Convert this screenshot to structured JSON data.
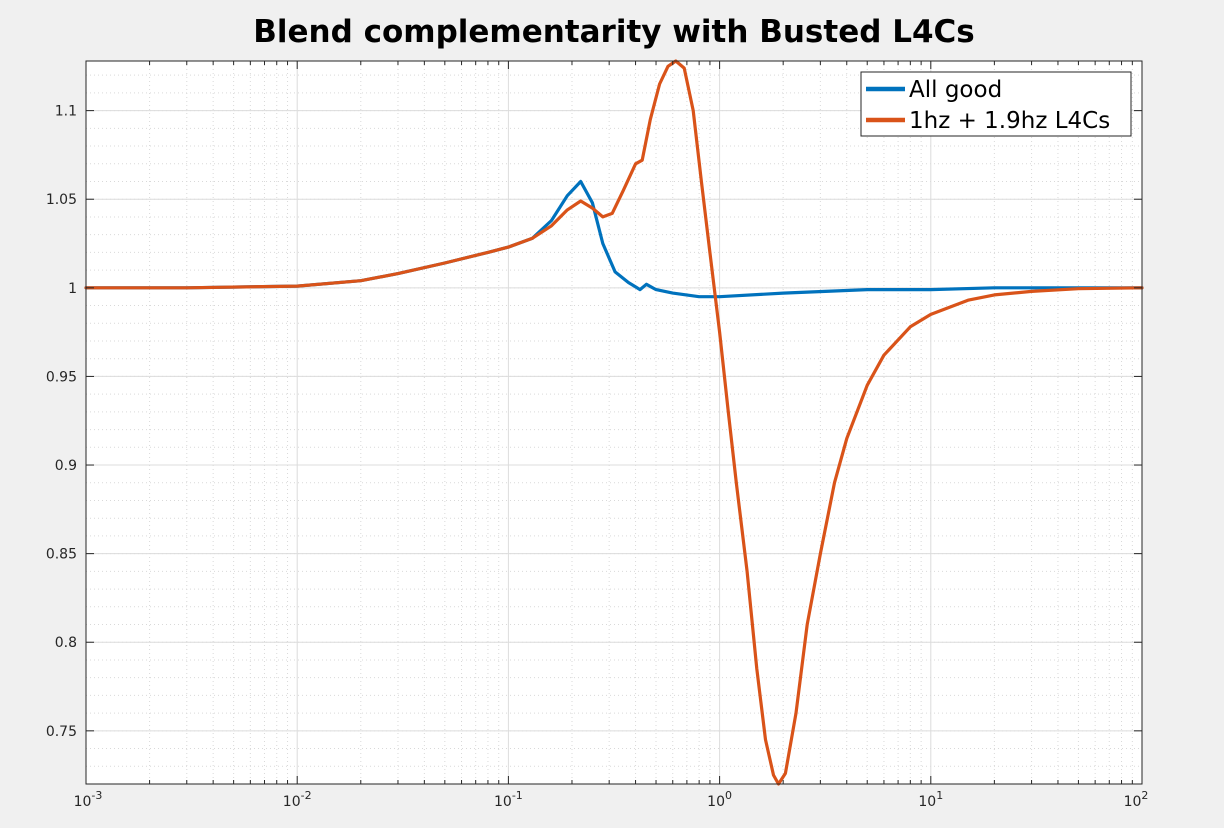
{
  "chart_data": {
    "type": "line",
    "title": "Blend complementarity with Busted L4Cs",
    "xlabel": "",
    "ylabel": "",
    "xscale": "log",
    "xlim": [
      0.001,
      100
    ],
    "ylim": [
      0.72,
      1.128
    ],
    "grid": true,
    "legend_position": "top-right",
    "x_tick_labels": [
      {
        "base": "10",
        "exp": "-3",
        "value": 0.001
      },
      {
        "base": "10",
        "exp": "-2",
        "value": 0.01
      },
      {
        "base": "10",
        "exp": "-1",
        "value": 0.1
      },
      {
        "base": "10",
        "exp": "0",
        "value": 1
      },
      {
        "base": "10",
        "exp": "1",
        "value": 10
      },
      {
        "base": "10",
        "exp": "2",
        "value": 100
      }
    ],
    "y_ticks": [
      0.75,
      0.8,
      0.85,
      0.9,
      0.95,
      1,
      1.05,
      1.1
    ],
    "y_tick_labels": [
      "0.75",
      "0.8",
      "0.85",
      "0.9",
      "0.95",
      "1",
      "1.05",
      "1.1"
    ],
    "series": [
      {
        "name": "All good",
        "color": "#0072bd",
        "points": [
          [
            0.001,
            1.0
          ],
          [
            0.003,
            1.0
          ],
          [
            0.01,
            1.001
          ],
          [
            0.02,
            1.004
          ],
          [
            0.03,
            1.008
          ],
          [
            0.05,
            1.014
          ],
          [
            0.08,
            1.02
          ],
          [
            0.1,
            1.023
          ],
          [
            0.13,
            1.028
          ],
          [
            0.16,
            1.038
          ],
          [
            0.19,
            1.052
          ],
          [
            0.22,
            1.06
          ],
          [
            0.25,
            1.048
          ],
          [
            0.28,
            1.025
          ],
          [
            0.32,
            1.009
          ],
          [
            0.37,
            1.003
          ],
          [
            0.42,
            0.999
          ],
          [
            0.45,
            1.002
          ],
          [
            0.5,
            0.999
          ],
          [
            0.6,
            0.997
          ],
          [
            0.8,
            0.995
          ],
          [
            1.0,
            0.995
          ],
          [
            2.0,
            0.997
          ],
          [
            5.0,
            0.999
          ],
          [
            10,
            0.999
          ],
          [
            20,
            1.0
          ],
          [
            50,
            1.0
          ],
          [
            100,
            1.0
          ]
        ]
      },
      {
        "name": "1hz + 1.9hz L4Cs",
        "color": "#d95319",
        "points": [
          [
            0.001,
            1.0
          ],
          [
            0.003,
            1.0
          ],
          [
            0.01,
            1.001
          ],
          [
            0.02,
            1.004
          ],
          [
            0.03,
            1.008
          ],
          [
            0.05,
            1.014
          ],
          [
            0.08,
            1.02
          ],
          [
            0.1,
            1.023
          ],
          [
            0.13,
            1.028
          ],
          [
            0.16,
            1.035
          ],
          [
            0.19,
            1.044
          ],
          [
            0.22,
            1.049
          ],
          [
            0.25,
            1.045
          ],
          [
            0.28,
            1.04
          ],
          [
            0.31,
            1.042
          ],
          [
            0.35,
            1.055
          ],
          [
            0.4,
            1.07
          ],
          [
            0.43,
            1.072
          ],
          [
            0.47,
            1.095
          ],
          [
            0.52,
            1.115
          ],
          [
            0.57,
            1.125
          ],
          [
            0.62,
            1.128
          ],
          [
            0.68,
            1.124
          ],
          [
            0.75,
            1.1
          ],
          [
            0.82,
            1.06
          ],
          [
            0.9,
            1.02
          ],
          [
            1.0,
            0.975
          ],
          [
            1.1,
            0.93
          ],
          [
            1.2,
            0.89
          ],
          [
            1.35,
            0.84
          ],
          [
            1.5,
            0.785
          ],
          [
            1.65,
            0.745
          ],
          [
            1.8,
            0.725
          ],
          [
            1.9,
            0.72
          ],
          [
            2.05,
            0.726
          ],
          [
            2.3,
            0.76
          ],
          [
            2.6,
            0.81
          ],
          [
            3.0,
            0.85
          ],
          [
            3.5,
            0.89
          ],
          [
            4.0,
            0.915
          ],
          [
            5.0,
            0.945
          ],
          [
            6.0,
            0.962
          ],
          [
            8.0,
            0.978
          ],
          [
            10,
            0.985
          ],
          [
            15,
            0.993
          ],
          [
            20,
            0.996
          ],
          [
            30,
            0.998
          ],
          [
            50,
            0.9995
          ],
          [
            100,
            1.0
          ]
        ]
      }
    ]
  }
}
